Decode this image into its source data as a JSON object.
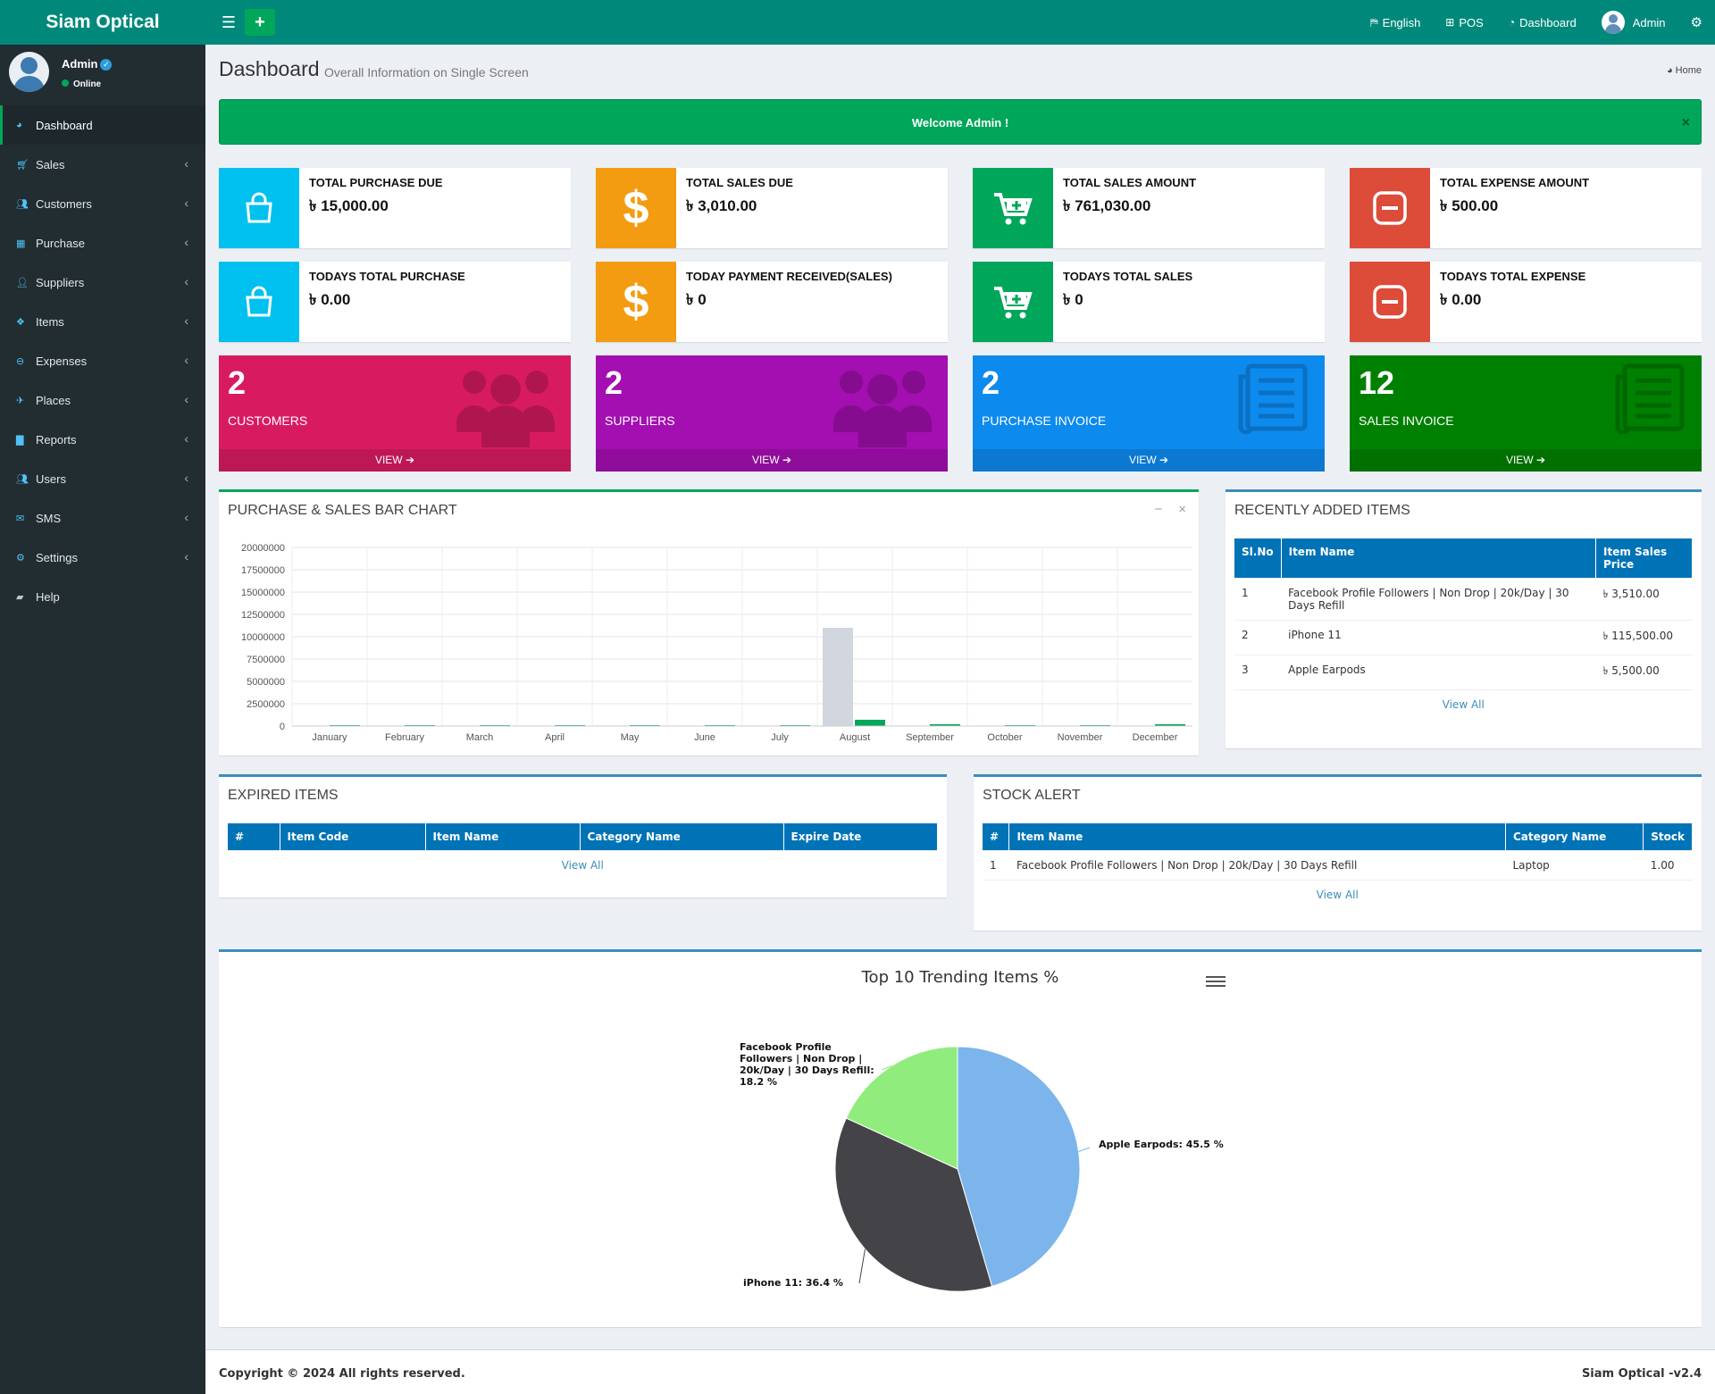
{
  "app": {
    "title": "Siam Optical"
  },
  "topnav": {
    "language": "English",
    "pos": "POS",
    "dashboard": "Dashboard",
    "user": "Admin"
  },
  "user": {
    "name": "Admin",
    "status": "Online"
  },
  "sidebar": {
    "items": [
      {
        "label": "Dashboard",
        "icon": "dashboard-icon"
      },
      {
        "label": "Sales",
        "icon": "cart-icon"
      },
      {
        "label": "Customers",
        "icon": "users-icon"
      },
      {
        "label": "Purchase",
        "icon": "grid-icon"
      },
      {
        "label": "Suppliers",
        "icon": "user-plus-icon"
      },
      {
        "label": "Items",
        "icon": "cubes-icon"
      },
      {
        "label": "Expenses",
        "icon": "minus-circle-icon"
      },
      {
        "label": "Places",
        "icon": "paper-plane-icon"
      },
      {
        "label": "Reports",
        "icon": "bar-chart-icon"
      },
      {
        "label": "Users",
        "icon": "users-icon"
      },
      {
        "label": "SMS",
        "icon": "envelope-icon"
      },
      {
        "label": "Settings",
        "icon": "cogs-icon"
      },
      {
        "label": "Help",
        "icon": "book-icon"
      }
    ]
  },
  "page": {
    "title": "Dashboard",
    "subtitle": "Overall Information on Single Screen",
    "breadcrumb": "Home"
  },
  "alert": {
    "text": "Welcome Admin !",
    "close": "×"
  },
  "info_boxes": [
    {
      "label": "TOTAL PURCHASE DUE",
      "value": "৳ 15,000.00",
      "color": "#00c0ef",
      "icon": "shopping-bag-icon"
    },
    {
      "label": "TOTAL SALES DUE",
      "value": "৳ 3,010.00",
      "color": "#f39c12",
      "icon": "dollar-icon"
    },
    {
      "label": "TOTAL SALES AMOUNT",
      "value": "৳ 761,030.00",
      "color": "#00a65a",
      "icon": "cart-plus-icon"
    },
    {
      "label": "TOTAL EXPENSE AMOUNT",
      "value": "৳ 500.00",
      "color": "#dd4b39",
      "icon": "minus-square-icon"
    },
    {
      "label": "TODAYS TOTAL PURCHASE",
      "value": "৳ 0.00",
      "color": "#00c0ef",
      "icon": "shopping-bag-icon"
    },
    {
      "label": "TODAY PAYMENT RECEIVED(SALES)",
      "value": "৳ 0",
      "color": "#f39c12",
      "icon": "dollar-icon"
    },
    {
      "label": "TODAYS TOTAL SALES",
      "value": "৳ 0",
      "color": "#00a65a",
      "icon": "cart-plus-icon"
    },
    {
      "label": "TODAYS TOTAL EXPENSE",
      "value": "৳ 0.00",
      "color": "#dd4b39",
      "icon": "minus-square-icon"
    }
  ],
  "stat_boxes": [
    {
      "number": "2",
      "label": "CUSTOMERS",
      "footer": "VIEW ➔",
      "color": "#d81b60"
    },
    {
      "number": "2",
      "label": "SUPPLIERS",
      "footer": "VIEW ➔",
      "color": "#a30fb0"
    },
    {
      "number": "2",
      "label": "PURCHASE INVOICE",
      "footer": "VIEW ➔",
      "color": "#0d8aee"
    },
    {
      "number": "12",
      "label": "SALES INVOICE",
      "footer": "VIEW ➔",
      "color": "#008000"
    }
  ],
  "bar_box": {
    "title": "PURCHASE & SALES BAR CHART",
    "minimize": "−",
    "close": "×"
  },
  "recent_items": {
    "title": "RECENTLY ADDED ITEMS",
    "headers": [
      "Sl.No",
      "Item Name",
      "Item Sales Price"
    ],
    "rows": [
      [
        "1",
        "Facebook Profile Followers | Non Drop | 20k/Day | 30 Days Refill",
        "৳ 3,510.00"
      ],
      [
        "2",
        "iPhone 11",
        "৳ 115,500.00"
      ],
      [
        "3",
        "Apple Earpods",
        "৳ 5,500.00"
      ]
    ],
    "view_all": "View All"
  },
  "expired_items": {
    "title": "EXPIRED ITEMS",
    "headers": [
      "#",
      "Item Code",
      "Item Name",
      "Category Name",
      "Expire Date"
    ],
    "view_all": "View All"
  },
  "stock_alert": {
    "title": "STOCK ALERT",
    "headers": [
      "#",
      "Item Name",
      "Category Name",
      "Stock"
    ],
    "rows": [
      [
        "1",
        "Facebook Profile Followers | Non Drop | 20k/Day | 30 Days Refill",
        "Laptop",
        "1.00"
      ]
    ],
    "view_all": "View All"
  },
  "chart_data": [
    {
      "type": "bar",
      "categories": [
        "January",
        "February",
        "March",
        "April",
        "May",
        "June",
        "July",
        "August",
        "September",
        "October",
        "November",
        "December"
      ],
      "series": [
        {
          "values": [
            0,
            0,
            0,
            0,
            0,
            0,
            0,
            11000000,
            0,
            0,
            0,
            0
          ],
          "color": "#d2d6de"
        },
        {
          "values": [
            100000,
            100000,
            100000,
            100000,
            100000,
            100000,
            100000,
            700000,
            200000,
            100000,
            100000,
            200000
          ],
          "color": "#00a65a"
        }
      ],
      "yticks": [
        0,
        2500000,
        5000000,
        7500000,
        10000000,
        12500000,
        15000000,
        17500000,
        20000000
      ],
      "ylim": [
        0,
        20000000
      ],
      "grid": true
    },
    {
      "type": "pie",
      "title": "Top 10 Trending Items %",
      "slices": [
        {
          "label": "Apple Earpods",
          "value": 45.5,
          "text": "Apple Earpods: 45.5 %",
          "color": "#7cb5ec"
        },
        {
          "label": "iPhone 11",
          "value": 36.4,
          "text": "iPhone 11: 36.4 %",
          "color": "#434348"
        },
        {
          "label": "Facebook Profile Followers | Non Drop | 20k/Day | 30 Days Refill",
          "value": 18.2,
          "text_lines": [
            "Facebook Profile",
            "Followers | Non Drop |",
            "20k/Day | 30 Days Refill:",
            "18.2 %"
          ],
          "color": "#90ed7d"
        }
      ]
    }
  ],
  "footer": {
    "copyright": "Copyright © 2024 All rights reserved.",
    "version": "Siam Optical -v2.4"
  }
}
